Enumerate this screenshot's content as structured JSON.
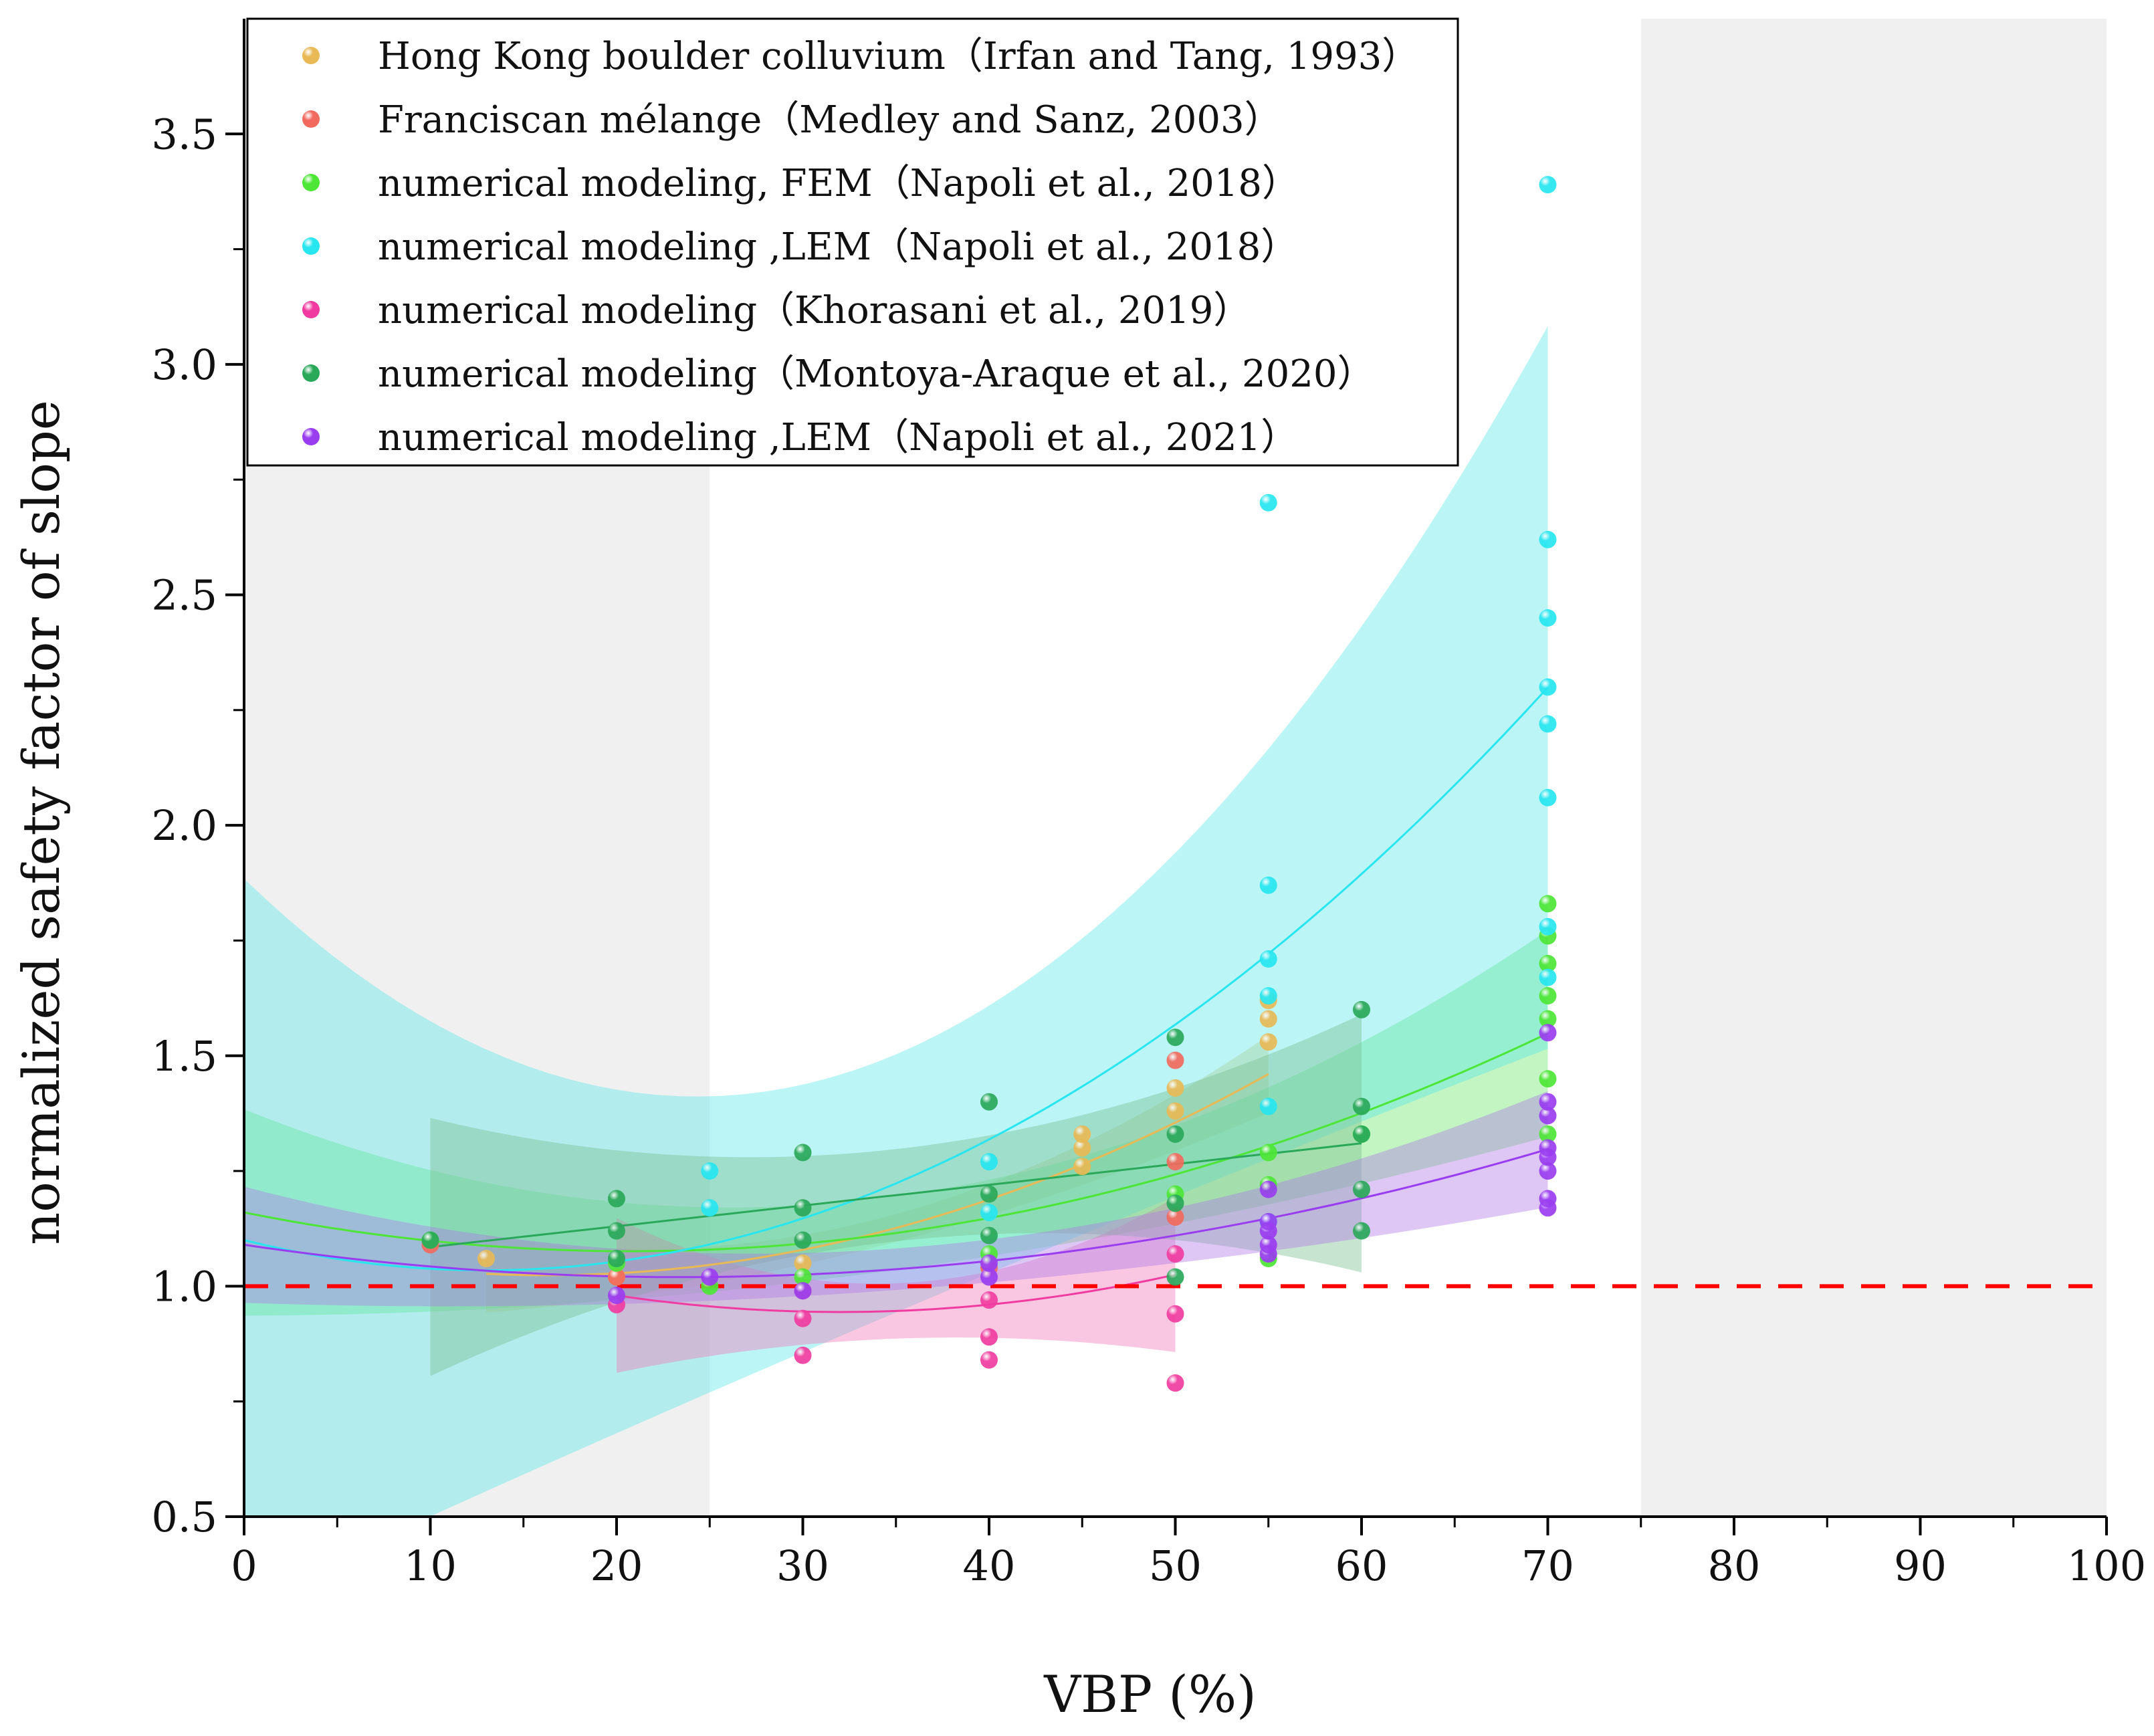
{
  "chart_data": {
    "type": "scatter",
    "title": "",
    "xlabel": "VBP (%)",
    "ylabel": "normalized safety factor of slope",
    "xlim": [
      0,
      100
    ],
    "ylim": [
      0.5,
      3.75
    ],
    "x_ticks": [
      "0",
      "10",
      "20",
      "30",
      "40",
      "50",
      "60",
      "70",
      "80",
      "90",
      "100"
    ],
    "y_ticks": [
      "0.5",
      "1.0",
      "1.5",
      "2.0",
      "2.5",
      "3.0",
      "3.5"
    ],
    "grid": false,
    "legend_position": "top-left",
    "shaded_x_ranges": [
      [
        0,
        25
      ],
      [
        75,
        100
      ]
    ],
    "reference_line": {
      "y": 1.0,
      "style": "dashed",
      "color": "#ff0000"
    },
    "series": [
      {
        "name": "Hong Kong boulder colluvium（Irfan and Tang, 1993）",
        "color": "#e8b955",
        "points": [
          [
            13,
            1.06
          ],
          [
            20,
            1.02
          ],
          [
            30,
            1.05
          ],
          [
            45,
            1.26
          ],
          [
            45,
            1.3
          ],
          [
            45,
            1.33
          ],
          [
            50,
            1.38
          ],
          [
            50,
            1.43
          ],
          [
            55,
            1.53
          ],
          [
            55,
            1.58
          ],
          [
            55,
            1.62
          ]
        ],
        "fit": {
          "x": [
            13,
            55
          ],
          "coef": [
            1.1,
            -0.0094,
            0.00029
          ],
          "band": 0.03,
          "color": "#d9c06a"
        }
      },
      {
        "name": "Franciscan mélange（Medley and Sanz, 2003）",
        "color": "#f26a5e",
        "points": [
          [
            10,
            1.09
          ],
          [
            20,
            1.02
          ],
          [
            30,
            0.99
          ],
          [
            40,
            1.04
          ],
          [
            50,
            1.15
          ],
          [
            50,
            1.27
          ],
          [
            50,
            1.49
          ]
        ],
        "fit": null
      },
      {
        "name": "numerical modeling, FEM（Napoli et al., 2018）",
        "color": "#4de636",
        "points": [
          [
            10,
            1.1
          ],
          [
            20,
            1.05
          ],
          [
            25,
            1.0
          ],
          [
            30,
            1.02
          ],
          [
            40,
            1.07
          ],
          [
            50,
            1.2
          ],
          [
            55,
            1.06
          ],
          [
            55,
            1.22
          ],
          [
            55,
            1.29
          ],
          [
            60,
            1.33
          ],
          [
            70,
            1.33
          ],
          [
            70,
            1.45
          ],
          [
            70,
            1.58
          ],
          [
            70,
            1.63
          ],
          [
            70,
            1.7
          ],
          [
            70,
            1.76
          ],
          [
            70,
            1.83
          ]
        ],
        "fit": {
          "x": [
            0,
            70
          ],
          "coef": [
            1.16,
            -0.0081,
            0.000195
          ],
          "band": 0.08,
          "color": "#6de86d"
        }
      },
      {
        "name": "numerical modeling ,LEM（Napoli et al., 2018）",
        "color": "#27e6f0",
        "points": [
          [
            25,
            1.17
          ],
          [
            25,
            1.25
          ],
          [
            40,
            1.16
          ],
          [
            40,
            1.27
          ],
          [
            55,
            1.14
          ],
          [
            55,
            1.39
          ],
          [
            55,
            1.63
          ],
          [
            55,
            1.71
          ],
          [
            55,
            1.87
          ],
          [
            55,
            2.7
          ],
          [
            70,
            1.67
          ],
          [
            70,
            1.78
          ],
          [
            70,
            2.06
          ],
          [
            70,
            2.22
          ],
          [
            70,
            2.3
          ],
          [
            70,
            2.45
          ],
          [
            70,
            2.62
          ],
          [
            70,
            3.39
          ]
        ],
        "fit": {
          "x": [
            0,
            70
          ],
          "coef": [
            1.1,
            -0.0101,
            0.000389
          ],
          "band": 0.28,
          "color": "#5ee6ea"
        }
      },
      {
        "name": "numerical modeling（Khorasani et al., 2019）",
        "color": "#f03ca0",
        "points": [
          [
            20,
            0.96
          ],
          [
            30,
            0.93
          ],
          [
            30,
            0.85
          ],
          [
            40,
            0.97
          ],
          [
            40,
            0.89
          ],
          [
            40,
            0.84
          ],
          [
            50,
            1.07
          ],
          [
            50,
            0.94
          ],
          [
            50,
            0.79
          ]
        ],
        "fit": {
          "x": [
            20,
            50
          ],
          "coef": [
            1.2,
            -0.016,
            0.00025
          ],
          "band": 0.06,
          "color": "#f07ab8"
        }
      },
      {
        "name": "numerical modeling（Montoya-Araque et al., 2020）",
        "color": "#2aa85a",
        "points": [
          [
            10,
            1.1
          ],
          [
            20,
            1.19
          ],
          [
            20,
            1.12
          ],
          [
            20,
            1.06
          ],
          [
            30,
            1.29
          ],
          [
            30,
            1.17
          ],
          [
            30,
            1.1
          ],
          [
            40,
            1.4
          ],
          [
            40,
            1.2
          ],
          [
            40,
            1.11
          ],
          [
            50,
            1.54
          ],
          [
            50,
            1.33
          ],
          [
            50,
            1.18
          ],
          [
            50,
            1.02
          ],
          [
            60,
            1.6
          ],
          [
            60,
            1.39
          ],
          [
            60,
            1.33
          ],
          [
            60,
            1.21
          ],
          [
            60,
            1.12
          ]
        ],
        "fit": {
          "x": [
            10,
            60
          ],
          "coef": [
            1.04,
            0.0045,
            0.0
          ],
          "band": 0.1,
          "color": "#79bf90"
        }
      },
      {
        "name": "numerical modeling ,LEM（Napoli et al., 2021）",
        "color": "#9a3df0",
        "points": [
          [
            20,
            0.98
          ],
          [
            25,
            1.02
          ],
          [
            30,
            0.99
          ],
          [
            40,
            1.02
          ],
          [
            40,
            1.05
          ],
          [
            55,
            1.07
          ],
          [
            55,
            1.09
          ],
          [
            55,
            1.12
          ],
          [
            55,
            1.14
          ],
          [
            55,
            1.21
          ],
          [
            70,
            1.17
          ],
          [
            70,
            1.19
          ],
          [
            70,
            1.25
          ],
          [
            70,
            1.28
          ],
          [
            70,
            1.3
          ],
          [
            70,
            1.37
          ],
          [
            70,
            1.4
          ],
          [
            70,
            1.55
          ]
        ],
        "fit": {
          "x": [
            0,
            70
          ],
          "coef": [
            1.09,
            -0.006,
            0.000128
          ],
          "band": 0.045,
          "color": "#b07ae8"
        }
      }
    ]
  }
}
